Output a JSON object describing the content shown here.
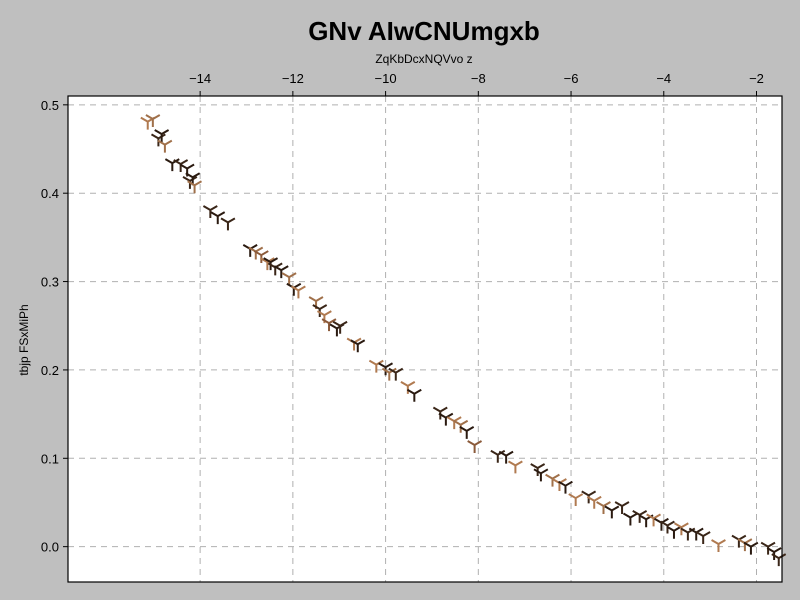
{
  "chart_data": {
    "type": "scatter",
    "marker": "tri_down",
    "title": "GNv AIwCNUmgxb",
    "xlabel": "ZqKbDcxNQVvo z",
    "ylabel": "tbjp FSxMiPh",
    "x_axis_position": "top",
    "xlim": [
      -16.85,
      -1.45
    ],
    "ylim": [
      -0.04,
      0.51
    ],
    "xticks": [
      -14,
      -12,
      -10,
      -8,
      -6,
      -4,
      -2
    ],
    "xtick_labels": [
      "−14",
      "−12",
      "−10",
      "−8",
      "−6",
      "−4",
      "−2"
    ],
    "yticks": [
      0.0,
      0.1,
      0.2,
      0.3,
      0.4,
      0.5
    ],
    "ytick_labels": [
      "0.0",
      "0.1",
      "0.2",
      "0.3",
      "0.4",
      "0.5"
    ],
    "grid": true,
    "colors": [
      "#2a1a10",
      "#3a2618",
      "#8b5a3a",
      "#a0704a",
      "#b07a50"
    ],
    "points": [
      [
        -15.13,
        0.481,
        4
      ],
      [
        -15.02,
        0.484,
        3
      ],
      [
        -14.9,
        0.462,
        1
      ],
      [
        -14.83,
        0.467,
        0
      ],
      [
        -14.76,
        0.455,
        3
      ],
      [
        -14.6,
        0.434,
        0
      ],
      [
        -14.42,
        0.433,
        1
      ],
      [
        -14.28,
        0.428,
        0
      ],
      [
        -14.22,
        0.414,
        1
      ],
      [
        -14.16,
        0.418,
        0
      ],
      [
        -14.12,
        0.409,
        3
      ],
      [
        -13.78,
        0.381,
        1
      ],
      [
        -13.62,
        0.374,
        0
      ],
      [
        -13.4,
        0.367,
        1
      ],
      [
        -12.92,
        0.337,
        0
      ],
      [
        -12.8,
        0.334,
        3
      ],
      [
        -12.68,
        0.33,
        2
      ],
      [
        -12.55,
        0.322,
        4
      ],
      [
        -12.48,
        0.322,
        0
      ],
      [
        -12.38,
        0.316,
        1
      ],
      [
        -12.25,
        0.313,
        0
      ],
      [
        -12.08,
        0.305,
        3
      ],
      [
        -11.98,
        0.293,
        0
      ],
      [
        -11.88,
        0.29,
        4
      ],
      [
        -11.5,
        0.278,
        3
      ],
      [
        -11.42,
        0.269,
        1
      ],
      [
        -11.32,
        0.262,
        4
      ],
      [
        -11.22,
        0.253,
        2
      ],
      [
        -11.05,
        0.247,
        0
      ],
      [
        -10.98,
        0.25,
        1
      ],
      [
        -10.68,
        0.231,
        4
      ],
      [
        -10.6,
        0.229,
        0
      ],
      [
        -10.2,
        0.206,
        4
      ],
      [
        -10.0,
        0.203,
        0
      ],
      [
        -9.92,
        0.197,
        3
      ],
      [
        -9.78,
        0.197,
        1
      ],
      [
        -9.52,
        0.182,
        4
      ],
      [
        -9.38,
        0.173,
        0
      ],
      [
        -8.82,
        0.153,
        1
      ],
      [
        -8.7,
        0.146,
        0
      ],
      [
        -8.52,
        0.142,
        4
      ],
      [
        -8.38,
        0.138,
        3
      ],
      [
        -8.25,
        0.131,
        0
      ],
      [
        -8.08,
        0.115,
        2
      ],
      [
        -7.58,
        0.104,
        1
      ],
      [
        -7.4,
        0.103,
        0
      ],
      [
        -7.2,
        0.092,
        4
      ],
      [
        -6.72,
        0.089,
        1
      ],
      [
        -6.65,
        0.083,
        0
      ],
      [
        -6.4,
        0.077,
        3
      ],
      [
        -6.25,
        0.072,
        4
      ],
      [
        -6.12,
        0.069,
        0
      ],
      [
        -5.9,
        0.055,
        4
      ],
      [
        -5.62,
        0.058,
        1
      ],
      [
        -5.5,
        0.052,
        4
      ],
      [
        -5.3,
        0.046,
        3
      ],
      [
        -5.12,
        0.041,
        0
      ],
      [
        -4.9,
        0.046,
        1
      ],
      [
        -4.72,
        0.033,
        0
      ],
      [
        -4.52,
        0.036,
        1
      ],
      [
        -4.38,
        0.031,
        0
      ],
      [
        -4.22,
        0.032,
        4
      ],
      [
        -4.05,
        0.027,
        0
      ],
      [
        -3.92,
        0.024,
        1
      ],
      [
        -3.78,
        0.018,
        0
      ],
      [
        -3.62,
        0.022,
        4
      ],
      [
        -3.48,
        0.016,
        1
      ],
      [
        -3.3,
        0.016,
        0
      ],
      [
        -3.15,
        0.012,
        1
      ],
      [
        -2.82,
        0.003,
        4
      ],
      [
        -2.38,
        0.008,
        1
      ],
      [
        -2.25,
        0.004,
        3
      ],
      [
        -2.12,
        0.0,
        0
      ],
      [
        -1.75,
        0.0,
        1
      ],
      [
        -1.62,
        -0.006,
        0
      ],
      [
        -1.52,
        -0.013,
        1
      ]
    ]
  }
}
